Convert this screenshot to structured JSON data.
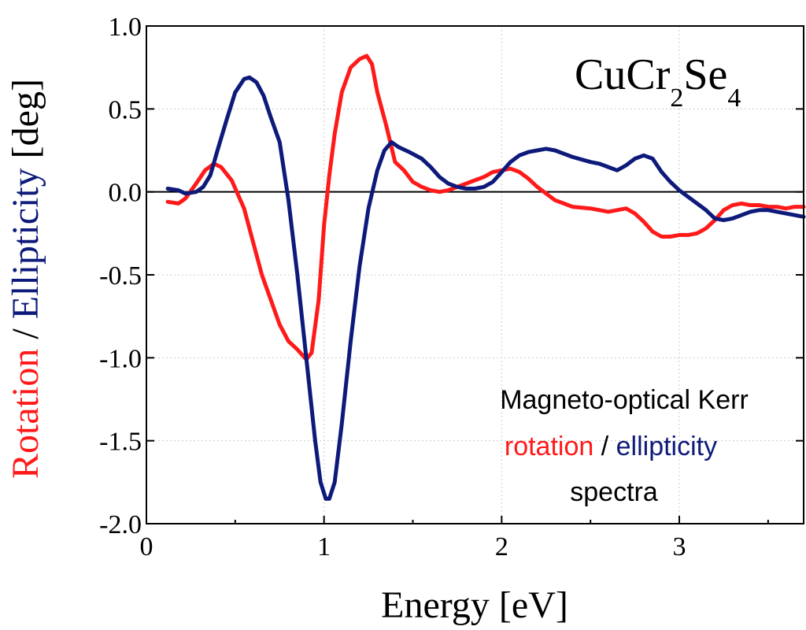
{
  "chart_data": {
    "type": "line",
    "title_formula": {
      "parts": [
        "CuCr",
        "2",
        "Se",
        "4"
      ]
    },
    "xlabel": "Energy [eV]",
    "ylabel": {
      "part1": "Rotation",
      "sep": " / ",
      "part2": "Ellipticity",
      "unit": " [deg]"
    },
    "xlim": [
      0,
      3.7
    ],
    "ylim": [
      -2.0,
      1.0
    ],
    "xticks": [
      0,
      1,
      2,
      3
    ],
    "xtick_labels": [
      "0",
      "1",
      "2",
      "3"
    ],
    "yticks": [
      1.0,
      0.5,
      0.0,
      -0.5,
      -1.0,
      -1.5,
      -2.0
    ],
    "ytick_labels": [
      "1.0",
      "0.5",
      "0.0",
      "-0.5",
      "-1.0",
      "-1.5",
      "-2.0"
    ],
    "grid": true,
    "zero_line": true,
    "annotation": {
      "line1": "Magneto-optical Kerr",
      "line2_a": "rotation",
      "line2_sep": " / ",
      "line2_b": "ellipticity",
      "line3": "spectra"
    },
    "colors": {
      "rotation": "#ff1a1a",
      "ellipticity": "#0d1a7a",
      "axis": "#000000",
      "grid": "#cccccc"
    },
    "series": [
      {
        "key": "rotation",
        "x": [
          0.12,
          0.18,
          0.22,
          0.28,
          0.33,
          0.38,
          0.42,
          0.48,
          0.55,
          0.6,
          0.65,
          0.7,
          0.75,
          0.8,
          0.85,
          0.9,
          0.93,
          0.97,
          1.0,
          1.03,
          1.06,
          1.1,
          1.15,
          1.2,
          1.24,
          1.27,
          1.3,
          1.35,
          1.4,
          1.45,
          1.5,
          1.55,
          1.6,
          1.65,
          1.7,
          1.75,
          1.8,
          1.85,
          1.9,
          1.95,
          2.0,
          2.05,
          2.1,
          2.15,
          2.2,
          2.25,
          2.3,
          2.4,
          2.5,
          2.6,
          2.65,
          2.7,
          2.75,
          2.8,
          2.85,
          2.9,
          2.95,
          3.0,
          3.05,
          3.1,
          3.15,
          3.2,
          3.25,
          3.3,
          3.35,
          3.4,
          3.45,
          3.5,
          3.55,
          3.6,
          3.65,
          3.7
        ],
        "y": [
          -0.06,
          -0.07,
          -0.04,
          0.05,
          0.13,
          0.17,
          0.15,
          0.07,
          -0.1,
          -0.3,
          -0.5,
          -0.65,
          -0.8,
          -0.9,
          -0.95,
          -1.01,
          -0.97,
          -0.65,
          -0.2,
          0.1,
          0.35,
          0.6,
          0.75,
          0.8,
          0.82,
          0.77,
          0.6,
          0.4,
          0.18,
          0.13,
          0.06,
          0.03,
          0.01,
          0.0,
          0.01,
          0.03,
          0.05,
          0.07,
          0.09,
          0.12,
          0.13,
          0.14,
          0.12,
          0.08,
          0.03,
          -0.01,
          -0.05,
          -0.09,
          -0.1,
          -0.12,
          -0.11,
          -0.1,
          -0.13,
          -0.18,
          -0.24,
          -0.27,
          -0.27,
          -0.26,
          -0.26,
          -0.25,
          -0.22,
          -0.17,
          -0.11,
          -0.08,
          -0.07,
          -0.08,
          -0.08,
          -0.09,
          -0.09,
          -0.1,
          -0.09,
          -0.09
        ]
      },
      {
        "key": "ellipticity",
        "x": [
          0.12,
          0.18,
          0.22,
          0.28,
          0.32,
          0.36,
          0.4,
          0.45,
          0.5,
          0.55,
          0.58,
          0.62,
          0.66,
          0.7,
          0.75,
          0.8,
          0.85,
          0.9,
          0.95,
          0.98,
          1.01,
          1.03,
          1.06,
          1.1,
          1.15,
          1.2,
          1.25,
          1.3,
          1.34,
          1.38,
          1.42,
          1.48,
          1.55,
          1.6,
          1.65,
          1.7,
          1.75,
          1.8,
          1.85,
          1.9,
          1.95,
          2.0,
          2.05,
          2.1,
          2.15,
          2.2,
          2.25,
          2.3,
          2.35,
          2.4,
          2.5,
          2.55,
          2.6,
          2.65,
          2.7,
          2.75,
          2.8,
          2.85,
          2.9,
          2.95,
          3.0,
          3.05,
          3.1,
          3.15,
          3.2,
          3.25,
          3.3,
          3.35,
          3.4,
          3.45,
          3.5,
          3.55,
          3.6,
          3.65,
          3.7
        ],
        "y": [
          0.02,
          0.01,
          -0.01,
          0.0,
          0.03,
          0.1,
          0.25,
          0.43,
          0.6,
          0.68,
          0.69,
          0.66,
          0.58,
          0.45,
          0.3,
          -0.05,
          -0.5,
          -1.0,
          -1.5,
          -1.75,
          -1.85,
          -1.85,
          -1.75,
          -1.4,
          -0.9,
          -0.45,
          -0.1,
          0.13,
          0.25,
          0.3,
          0.27,
          0.24,
          0.2,
          0.15,
          0.09,
          0.05,
          0.03,
          0.02,
          0.02,
          0.03,
          0.06,
          0.12,
          0.18,
          0.22,
          0.24,
          0.25,
          0.26,
          0.25,
          0.23,
          0.21,
          0.18,
          0.17,
          0.15,
          0.13,
          0.16,
          0.2,
          0.22,
          0.2,
          0.12,
          0.06,
          0.01,
          -0.03,
          -0.07,
          -0.11,
          -0.16,
          -0.17,
          -0.16,
          -0.14,
          -0.12,
          -0.11,
          -0.11,
          -0.12,
          -0.13,
          -0.14,
          -0.15
        ]
      }
    ]
  }
}
